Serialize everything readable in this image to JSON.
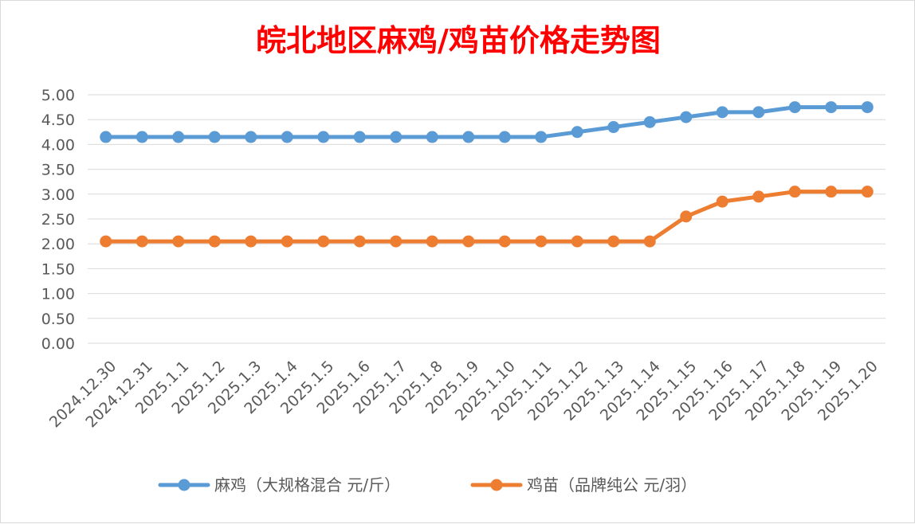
{
  "chart_data": {
    "type": "line",
    "title": "皖北地区麻鸡/鸡苗价格走势图",
    "title_color": "#ff0000",
    "xlabel": "",
    "ylabel": "",
    "categories": [
      "2024.12.30",
      "2024.12.31",
      "2025.1.1",
      "2025.1.2",
      "2025.1.3",
      "2025.1.4",
      "2025.1.5",
      "2025.1.6",
      "2025.1.7",
      "2025.1.8",
      "2025.1.9",
      "2025.1.10",
      "2025.1.11",
      "2025.1.12",
      "2025.1.13",
      "2025.1.14",
      "2025.1.15",
      "2025.1.16",
      "2025.1.17",
      "2025.1.18",
      "2025.1.19",
      "2025.1.20"
    ],
    "y_ticks": [
      "0.00",
      "0.50",
      "1.00",
      "1.50",
      "2.00",
      "2.50",
      "3.00",
      "3.50",
      "4.00",
      "4.50",
      "5.00"
    ],
    "ylim": [
      0,
      5
    ],
    "grid": true,
    "legend_position": "bottom",
    "series": [
      {
        "name": "麻鸡（大规格混合 元/斤）",
        "color": "#5b9bd5",
        "values": [
          4.15,
          4.15,
          4.15,
          4.15,
          4.15,
          4.15,
          4.15,
          4.15,
          4.15,
          4.15,
          4.15,
          4.15,
          4.15,
          4.25,
          4.35,
          4.45,
          4.55,
          4.65,
          4.65,
          4.75,
          4.75,
          4.75
        ]
      },
      {
        "name": "鸡苗（品牌纯公 元/羽）",
        "color": "#ed7d31",
        "values": [
          2.05,
          2.05,
          2.05,
          2.05,
          2.05,
          2.05,
          2.05,
          2.05,
          2.05,
          2.05,
          2.05,
          2.05,
          2.05,
          2.05,
          2.05,
          2.05,
          2.55,
          2.85,
          2.95,
          3.05,
          3.05,
          3.05
        ]
      }
    ]
  }
}
